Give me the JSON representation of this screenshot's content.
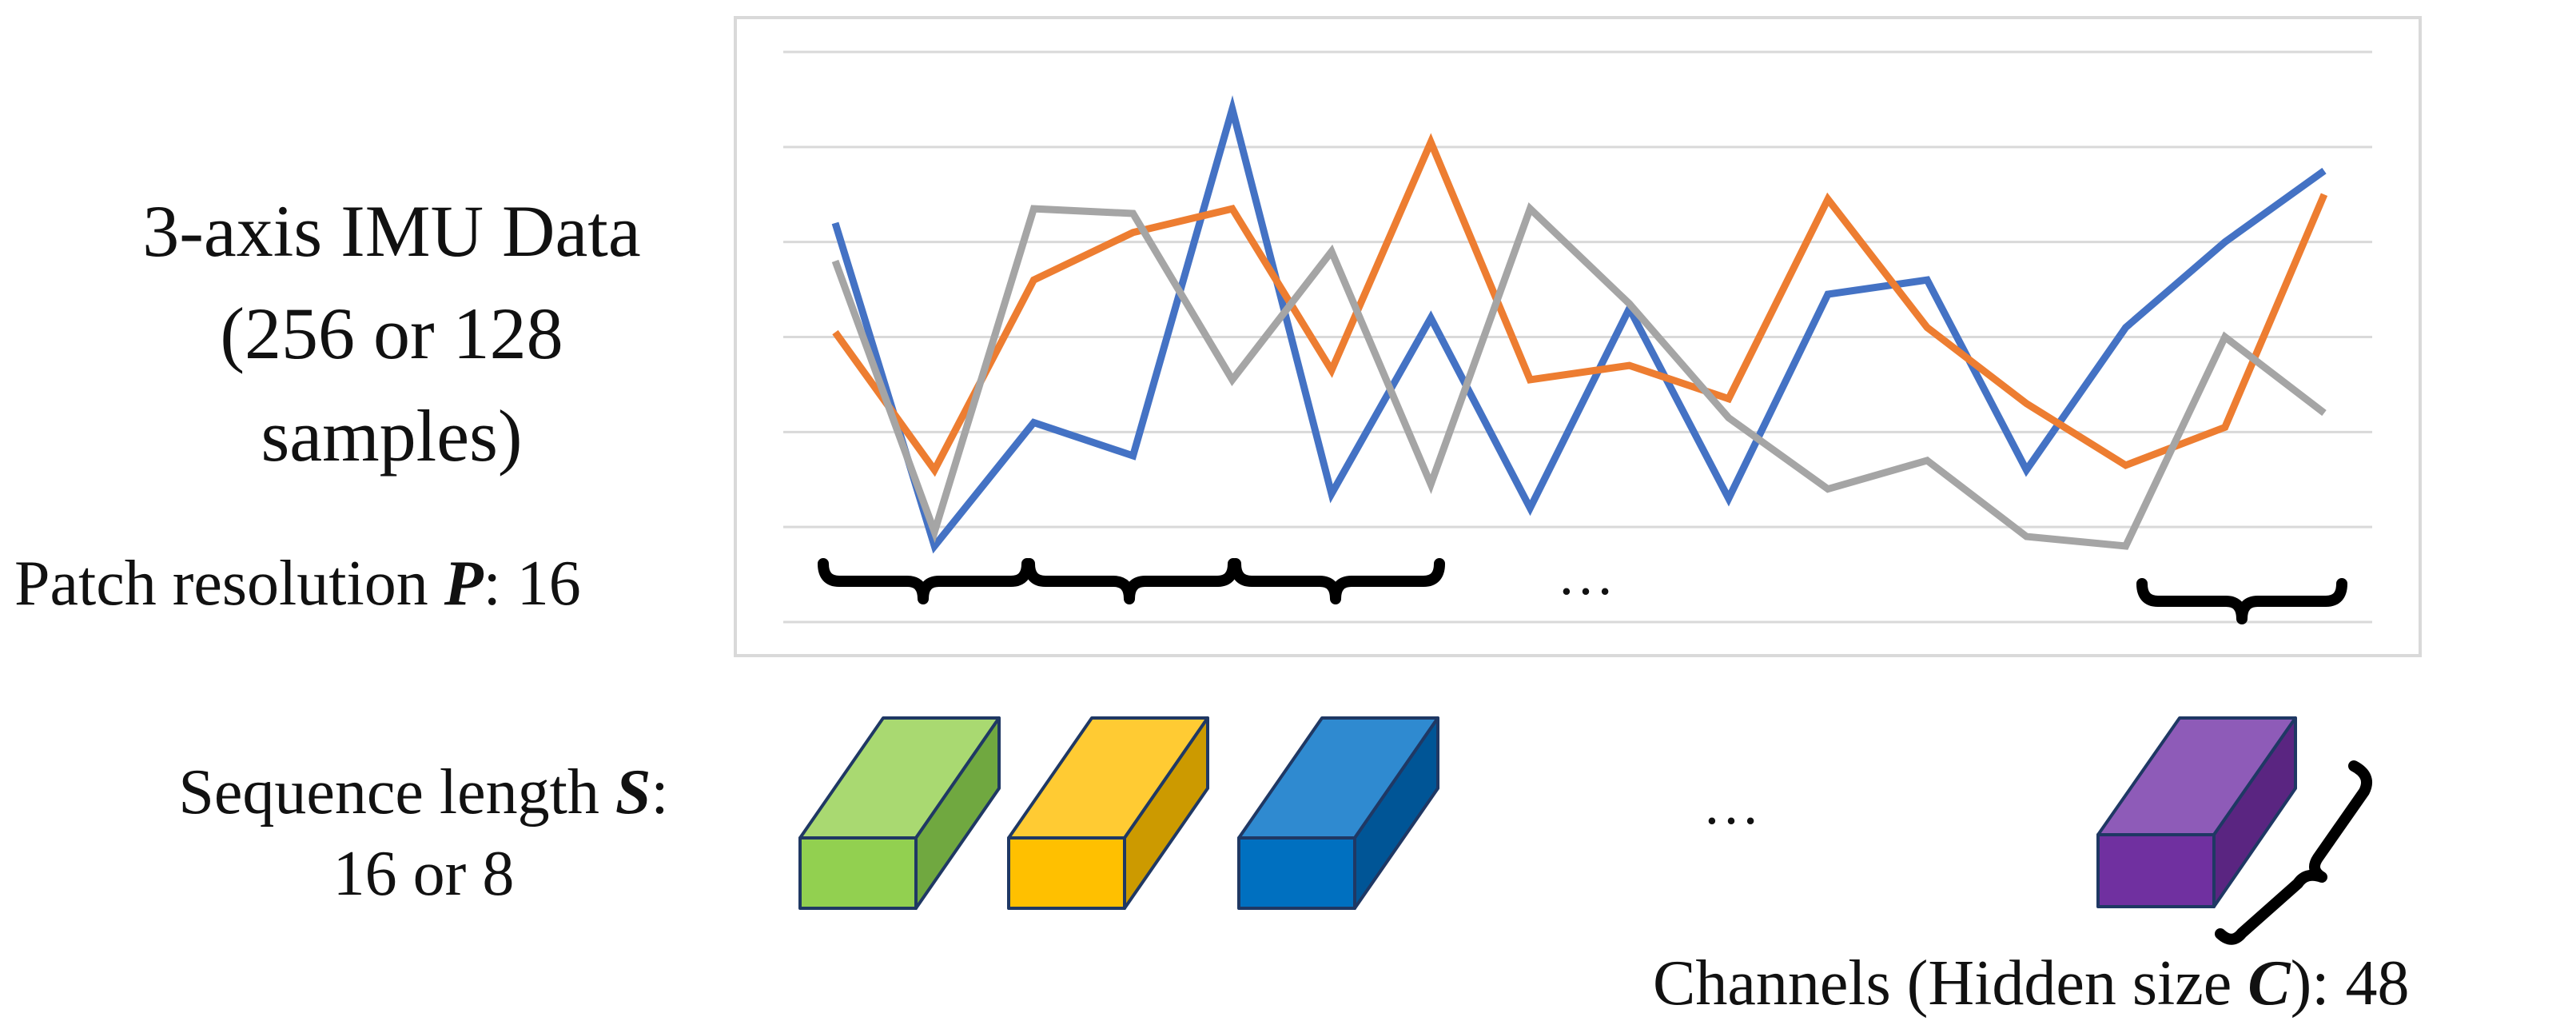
{
  "title_lines": [
    "3-axis IMU Data",
    "(256 or 128",
    "samples)"
  ],
  "patch": {
    "prefix": "Patch resolution ",
    "var": "P",
    "suffix": ": 16"
  },
  "sequence": {
    "prefix": "Sequence length ",
    "var": "S",
    "suffix": ":",
    "line2": "16 or 8"
  },
  "channels": {
    "prefix": "Channels (Hidden size ",
    "var": "C",
    "suffix": "): 48"
  },
  "ellipsis": "…",
  "colors": {
    "series_blue": "#4472C4",
    "series_orange": "#ED7D31",
    "series_gray": "#A5A5A5",
    "token_green": "#92D050",
    "token_yellow": "#FFC000",
    "token_blue": "#0070C0",
    "token_purple": "#7030A0"
  },
  "chart_data": {
    "type": "line",
    "x": [
      0,
      1,
      2,
      3,
      4,
      5,
      6,
      7,
      8,
      9,
      10,
      11,
      12,
      13,
      14,
      15
    ],
    "ylim": [
      0,
      6
    ],
    "grid": true,
    "series": [
      {
        "values": [
          4.2,
          0.8,
          2.1,
          1.75,
          5.4,
          1.35,
          3.2,
          1.2,
          3.3,
          1.3,
          3.45,
          3.6,
          1.6,
          3.1,
          4.0,
          4.75
        ]
      },
      {
        "values": [
          3.05,
          1.6,
          3.6,
          4.1,
          4.35,
          2.65,
          5.05,
          2.55,
          2.7,
          2.35,
          4.45,
          3.1,
          2.3,
          1.65,
          2.05,
          4.5
        ]
      },
      {
        "values": [
          3.8,
          0.95,
          4.35,
          4.3,
          2.55,
          3.9,
          1.45,
          4.35,
          3.35,
          2.15,
          1.4,
          1.7,
          0.9,
          0.8,
          3.0,
          2.2
        ]
      }
    ]
  }
}
